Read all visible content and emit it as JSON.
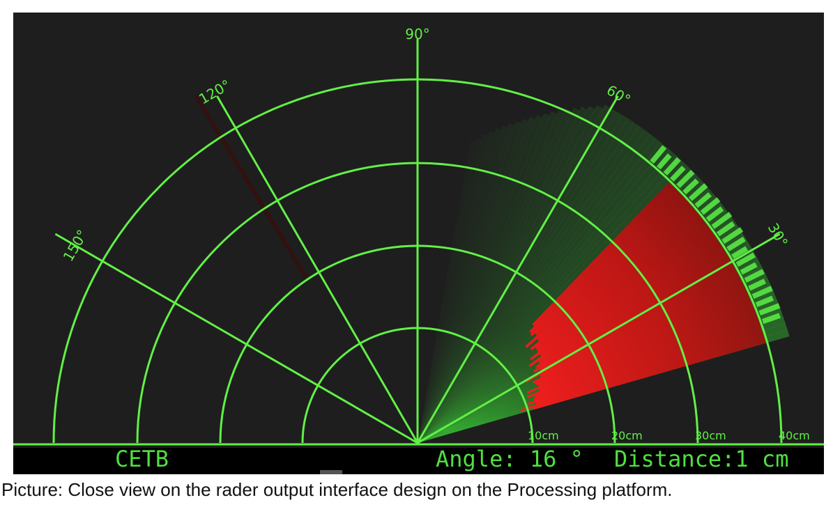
{
  "radar": {
    "title": "CETB",
    "angle_text": "Angle: 16 °",
    "distance_text": "Distance:1 cm",
    "current_angle_deg": 16,
    "max_range_cm": 40,
    "angle_labels": [
      "150°",
      "120°",
      "90°",
      "60°",
      "30°"
    ],
    "range_labels": [
      "10cm",
      "20cm",
      "30cm",
      "40cm"
    ],
    "colors": {
      "background": "#1e1e1e",
      "grid": "#62f046",
      "sweep": "#3fd63a",
      "object": "#ff1f1f",
      "bottom_bar": "#000000"
    }
  },
  "caption": {
    "text": "Picture: Close view on the rader output interface design on the Processing platform."
  }
}
